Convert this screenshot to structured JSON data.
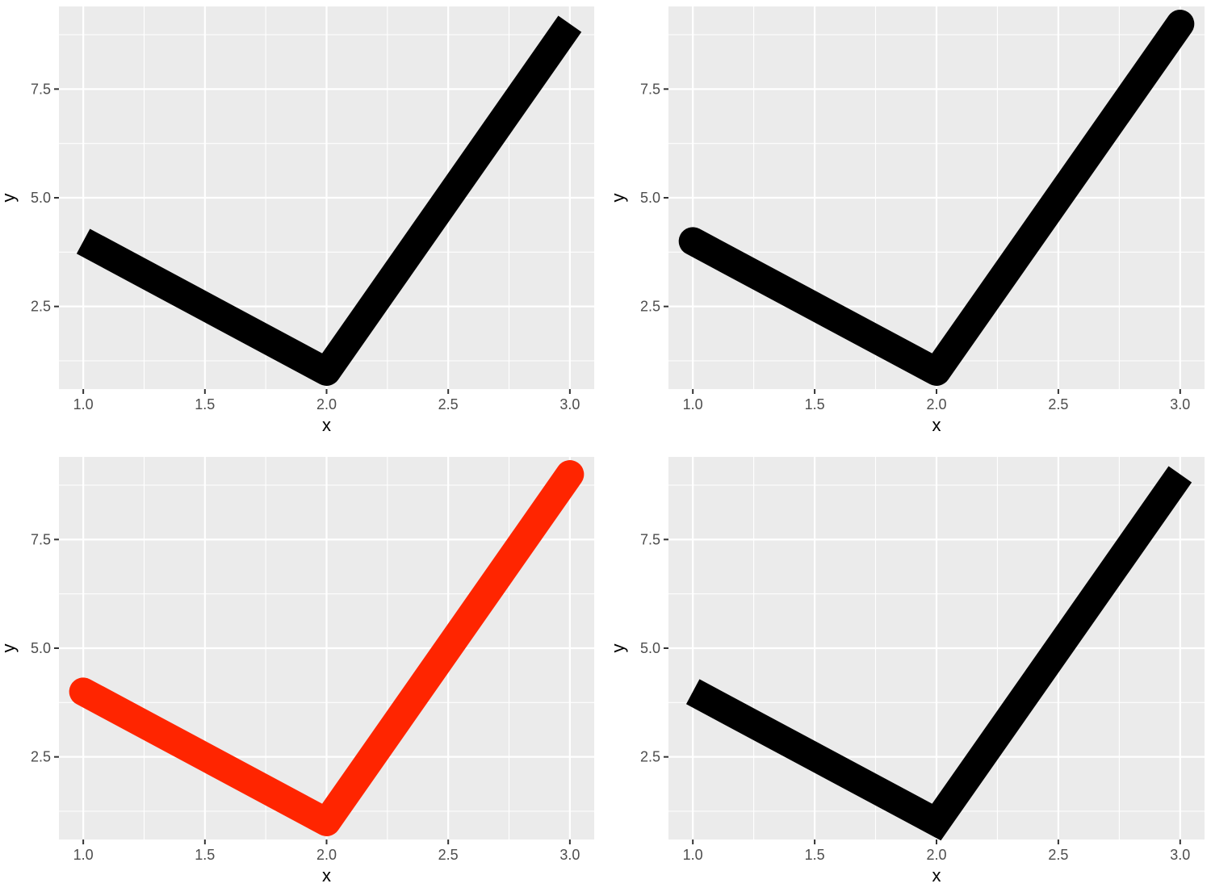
{
  "chart_data": [
    {
      "type": "line",
      "panel": "top-left",
      "x": [
        1,
        2,
        3
      ],
      "y": [
        4,
        1,
        9
      ],
      "xlabel": "x",
      "ylabel": "y",
      "xlim": [
        0.9,
        3.1
      ],
      "ylim": [
        0.6,
        9.4
      ],
      "xticks": [
        1.0,
        1.5,
        2.0,
        2.5,
        3.0
      ],
      "xtick_labels": [
        "1.0",
        "1.5",
        "2.0",
        "2.5",
        "3.0"
      ],
      "yticks": [
        2.5,
        5.0,
        7.5
      ],
      "ytick_labels": [
        "2.5",
        "5.0",
        "7.5"
      ],
      "line_color": "#000000",
      "line_end": "butt",
      "line_join": "round",
      "grid": true
    },
    {
      "type": "line",
      "panel": "top-right",
      "x": [
        1,
        2,
        3
      ],
      "y": [
        4,
        1,
        9
      ],
      "xlabel": "x",
      "ylabel": "y",
      "xlim": [
        0.9,
        3.1
      ],
      "ylim": [
        0.6,
        9.4
      ],
      "xticks": [
        1.0,
        1.5,
        2.0,
        2.5,
        3.0
      ],
      "xtick_labels": [
        "1.0",
        "1.5",
        "2.0",
        "2.5",
        "3.0"
      ],
      "yticks": [
        2.5,
        5.0,
        7.5
      ],
      "ytick_labels": [
        "2.5",
        "5.0",
        "7.5"
      ],
      "line_color": "#000000",
      "line_end": "round",
      "line_join": "round",
      "grid": true
    },
    {
      "type": "line",
      "panel": "bottom-left",
      "x": [
        1,
        2,
        3
      ],
      "y": [
        4,
        1,
        9
      ],
      "xlabel": "x",
      "ylabel": "y",
      "xlim": [
        0.9,
        3.1
      ],
      "ylim": [
        0.6,
        9.4
      ],
      "xticks": [
        1.0,
        1.5,
        2.0,
        2.5,
        3.0
      ],
      "xtick_labels": [
        "1.0",
        "1.5",
        "2.0",
        "2.5",
        "3.0"
      ],
      "yticks": [
        2.5,
        5.0,
        7.5
      ],
      "ytick_labels": [
        "2.5",
        "5.0",
        "7.5"
      ],
      "line_color": "#ff2500",
      "line_end": "round",
      "line_join": "round",
      "grid": true
    },
    {
      "type": "line",
      "panel": "bottom-right",
      "x": [
        1,
        2,
        3
      ],
      "y": [
        4,
        1,
        9
      ],
      "xlabel": "x",
      "ylabel": "y",
      "xlim": [
        0.9,
        3.1
      ],
      "ylim": [
        0.6,
        9.4
      ],
      "xticks": [
        1.0,
        1.5,
        2.0,
        2.5,
        3.0
      ],
      "xtick_labels": [
        "1.0",
        "1.5",
        "2.0",
        "2.5",
        "3.0"
      ],
      "yticks": [
        2.5,
        5.0,
        7.5
      ],
      "ytick_labels": [
        "2.5",
        "5.0",
        "7.5"
      ],
      "line_color": "#000000",
      "line_end": "butt",
      "line_join": "miter",
      "grid": true
    }
  ]
}
